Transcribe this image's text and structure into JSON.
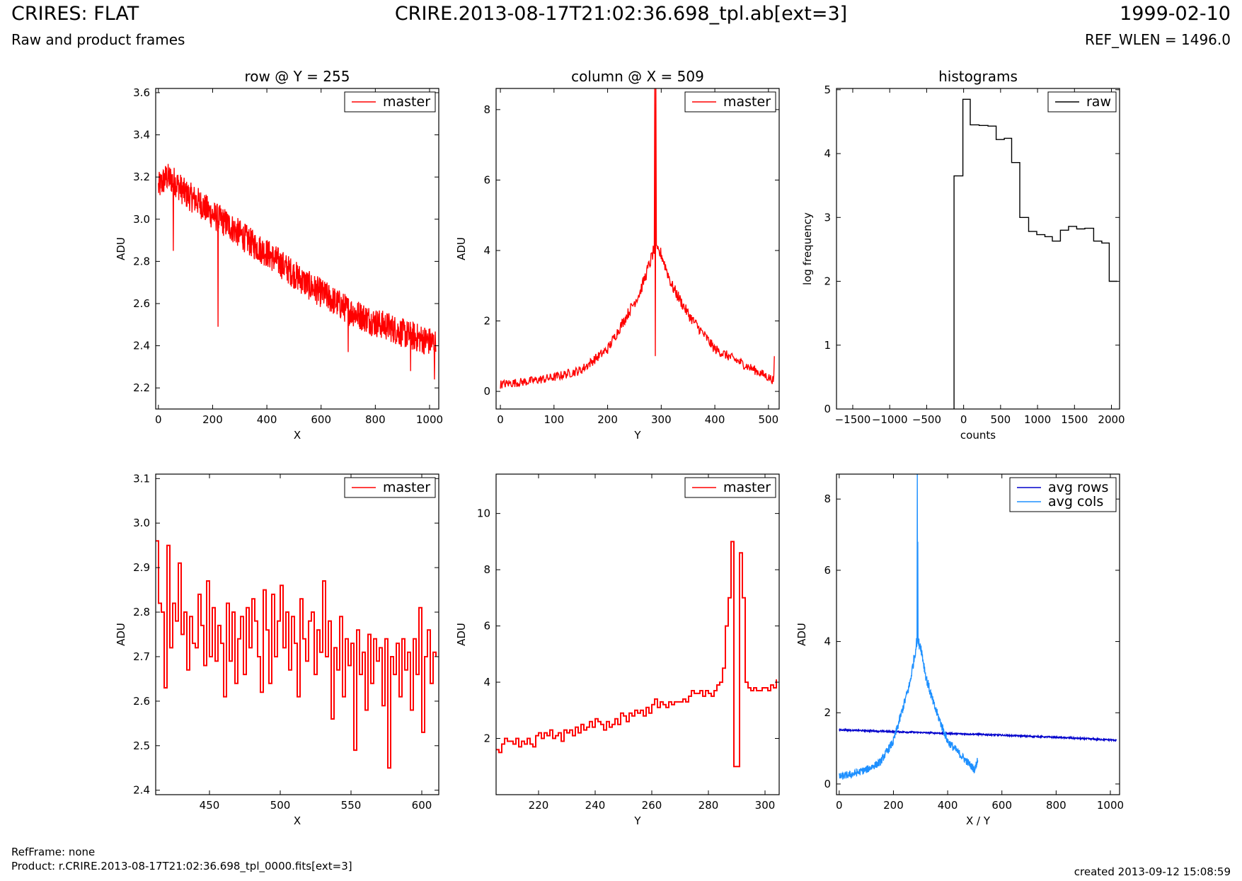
{
  "header": {
    "title_left": "CRIRES: FLAT",
    "subtitle_left": "Raw and product frames",
    "title_center": "CRIRE.2013-08-17T21:02:36.698_tpl.ab[ext=3]",
    "title_right": "1999-02-10",
    "subtitle_right": "REF_WLEN = 1496.0"
  },
  "footer": {
    "ref_frame": "RefFrame: none",
    "product": "Product: r.CRIRE.2013-08-17T21:02:36.698_tpl_0000.fits[ext=3]",
    "created": "created 2013-09-12 15:08:59"
  },
  "chart_data": [
    {
      "id": "row",
      "type": "line",
      "title": "row @ Y = 255",
      "xlabel": "X",
      "ylabel": "ADU",
      "xlim": [
        -10,
        1034
      ],
      "ylim": [
        2.1,
        3.62
      ],
      "xticks": [
        0,
        200,
        400,
        600,
        800,
        1000
      ],
      "yticks": [
        2.2,
        2.4,
        2.6,
        2.8,
        3.0,
        3.2,
        3.4,
        3.6
      ],
      "ytick_decimals": 1,
      "legend": "top-right",
      "series": [
        {
          "name": "master",
          "color": "#ff0000",
          "style": "line",
          "x": [
            0,
            30,
            60,
            100,
            150,
            200,
            250,
            300,
            350,
            400,
            450,
            500,
            550,
            600,
            650,
            700,
            750,
            800,
            850,
            900,
            950,
            1000,
            1023
          ],
          "y": [
            3.15,
            3.2,
            3.18,
            3.12,
            3.08,
            3.02,
            2.98,
            2.93,
            2.88,
            2.84,
            2.79,
            2.74,
            2.69,
            2.65,
            2.61,
            2.57,
            2.54,
            2.51,
            2.49,
            2.46,
            2.44,
            2.42,
            2.41
          ],
          "noise": 0.07,
          "spikes": [
            [
              220,
              2.49
            ],
            [
              55,
              2.85
            ],
            [
              700,
              2.37
            ],
            [
              930,
              2.28
            ],
            [
              1018,
              2.24
            ]
          ]
        }
      ]
    },
    {
      "id": "col",
      "type": "line",
      "title": "column @ X = 509",
      "xlabel": "Y",
      "ylabel": "ADU",
      "xlim": [
        -8,
        520
      ],
      "ylim": [
        -0.5,
        8.6
      ],
      "xticks": [
        0,
        100,
        200,
        300,
        400,
        500
      ],
      "yticks": [
        0,
        2,
        4,
        6,
        8
      ],
      "ytick_decimals": 0,
      "legend": "top-right",
      "series": [
        {
          "name": "master",
          "color": "#ff0000",
          "style": "line",
          "x": [
            0,
            50,
            100,
            150,
            200,
            230,
            260,
            280,
            286,
            300,
            320,
            350,
            400,
            450,
            500,
            511
          ],
          "y": [
            0.2,
            0.28,
            0.4,
            0.6,
            1.2,
            2.0,
            2.8,
            3.7,
            4.0,
            3.9,
            3.0,
            2.2,
            1.2,
            0.8,
            0.4,
            0.3
          ],
          "noise": 0.12,
          "spikes": [
            [
              288,
              8.6
            ],
            [
              289,
              1.0
            ],
            [
              290,
              8.6
            ],
            [
              511,
              1.0
            ]
          ]
        }
      ]
    },
    {
      "id": "hist",
      "type": "line",
      "title": "histograms",
      "xlabel": "counts",
      "ylabel": "log frequency",
      "xlim": [
        -1720,
        2110
      ],
      "ylim": [
        0,
        5.02
      ],
      "xticks": [
        -1500,
        -1000,
        -500,
        0,
        500,
        1000,
        1500,
        2000
      ],
      "xtick_labels": [
        "−1500",
        "−1000",
        "−500",
        "0",
        "500",
        "1000",
        "1500",
        "2000"
      ],
      "yticks": [
        0,
        1,
        2,
        3,
        4,
        5
      ],
      "ytick_decimals": 0,
      "legend": "top-right",
      "series": [
        {
          "name": "raw",
          "color": "#000000",
          "style": "step",
          "x": [
            -130,
            -10,
            90,
            210,
            330,
            440,
            550,
            650,
            760,
            880,
            990,
            1100,
            1200,
            1310,
            1420,
            1530,
            1640,
            1760,
            1870,
            1970,
            2080
          ],
          "y": [
            3.65,
            4.85,
            4.45,
            4.44,
            4.43,
            4.22,
            4.24,
            3.86,
            3.0,
            2.78,
            2.73,
            2.7,
            2.63,
            2.8,
            2.86,
            2.82,
            2.83,
            2.63,
            2.6,
            2.0,
            2.0
          ]
        }
      ]
    },
    {
      "id": "rowzoom",
      "type": "line",
      "title": "",
      "xlabel": "X",
      "ylabel": "ADU",
      "xlim": [
        412,
        612
      ],
      "ylim": [
        2.39,
        3.11
      ],
      "xticks": [
        450,
        500,
        550,
        600
      ],
      "yticks": [
        2.4,
        2.5,
        2.6,
        2.7,
        2.8,
        2.9,
        3.0,
        3.1
      ],
      "ytick_decimals": 1,
      "legend": "top-right",
      "series": [
        {
          "name": "master",
          "color": "#ff0000",
          "style": "step",
          "x": [
            412,
            414,
            416,
            418,
            420,
            422,
            424,
            426,
            428,
            430,
            432,
            434,
            436,
            438,
            440,
            442,
            444,
            446,
            448,
            450,
            452,
            454,
            456,
            458,
            460,
            462,
            464,
            466,
            468,
            470,
            472,
            474,
            476,
            478,
            480,
            482,
            484,
            486,
            488,
            490,
            492,
            494,
            496,
            498,
            500,
            502,
            504,
            506,
            508,
            510,
            512,
            514,
            516,
            518,
            520,
            522,
            524,
            526,
            528,
            530,
            532,
            534,
            536,
            538,
            540,
            542,
            544,
            546,
            548,
            550,
            552,
            554,
            556,
            558,
            560,
            562,
            564,
            566,
            568,
            570,
            572,
            574,
            576,
            578,
            580,
            582,
            584,
            586,
            588,
            590,
            592,
            594,
            596,
            598,
            600,
            602,
            604,
            606,
            608,
            610
          ],
          "y": [
            2.96,
            2.82,
            2.8,
            2.63,
            2.95,
            2.72,
            2.82,
            2.78,
            2.91,
            2.75,
            2.8,
            2.67,
            2.79,
            2.73,
            2.72,
            2.84,
            2.77,
            2.68,
            2.87,
            2.7,
            2.81,
            2.69,
            2.77,
            2.73,
            2.61,
            2.82,
            2.69,
            2.8,
            2.64,
            2.74,
            2.79,
            2.66,
            2.81,
            2.72,
            2.83,
            2.78,
            2.7,
            2.62,
            2.85,
            2.76,
            2.64,
            2.84,
            2.7,
            2.78,
            2.86,
            2.72,
            2.8,
            2.67,
            2.79,
            2.73,
            2.61,
            2.83,
            2.74,
            2.69,
            2.78,
            2.8,
            2.66,
            2.76,
            2.71,
            2.87,
            2.7,
            2.78,
            2.56,
            2.72,
            2.67,
            2.79,
            2.61,
            2.74,
            2.68,
            2.73,
            2.49,
            2.76,
            2.66,
            2.71,
            2.58,
            2.75,
            2.64,
            2.74,
            2.69,
            2.72,
            2.59,
            2.74,
            2.45,
            2.7,
            2.66,
            2.73,
            2.61,
            2.74,
            2.67,
            2.71,
            2.58,
            2.74,
            2.66,
            2.81,
            2.53,
            2.7,
            2.76,
            2.64,
            2.71,
            2.7
          ]
        }
      ]
    },
    {
      "id": "colzoom",
      "type": "line",
      "title": "",
      "xlabel": "Y",
      "ylabel": "ADU",
      "xlim": [
        205,
        305
      ],
      "ylim": [
        0,
        11.4
      ],
      "xticks": [
        220,
        240,
        260,
        280,
        300
      ],
      "yticks": [
        2,
        4,
        6,
        8,
        10
      ],
      "ytick_decimals": 0,
      "legend": "top-right",
      "series": [
        {
          "name": "master",
          "color": "#ff0000",
          "style": "step",
          "x": [
            205,
            206,
            207,
            208,
            209,
            210,
            211,
            212,
            213,
            214,
            215,
            216,
            217,
            218,
            219,
            220,
            221,
            222,
            223,
            224,
            225,
            226,
            227,
            228,
            229,
            230,
            231,
            232,
            233,
            234,
            235,
            236,
            237,
            238,
            239,
            240,
            241,
            242,
            243,
            244,
            245,
            246,
            247,
            248,
            249,
            250,
            251,
            252,
            253,
            254,
            255,
            256,
            257,
            258,
            259,
            260,
            261,
            262,
            263,
            264,
            265,
            266,
            267,
            268,
            269,
            270,
            271,
            272,
            273,
            274,
            275,
            276,
            277,
            278,
            279,
            280,
            281,
            282,
            283,
            284,
            285,
            286,
            287,
            288,
            289,
            290,
            291,
            292,
            293,
            294,
            295,
            296,
            297,
            298,
            299,
            300,
            301,
            302,
            303,
            304
          ],
          "y": [
            1.6,
            1.5,
            1.8,
            2.0,
            1.9,
            1.9,
            1.8,
            2.0,
            1.7,
            1.9,
            1.8,
            2.0,
            1.8,
            1.7,
            2.1,
            2.2,
            2.0,
            2.2,
            2.1,
            2.3,
            2.0,
            2.1,
            2.2,
            1.9,
            2.3,
            2.2,
            2.3,
            2.1,
            2.4,
            2.2,
            2.5,
            2.3,
            2.4,
            2.6,
            2.4,
            2.7,
            2.6,
            2.5,
            2.3,
            2.6,
            2.4,
            2.5,
            2.7,
            2.5,
            2.9,
            2.8,
            2.6,
            2.9,
            2.8,
            3.0,
            2.9,
            3.0,
            2.8,
            3.1,
            2.9,
            3.2,
            3.4,
            3.1,
            3.3,
            3.2,
            3.1,
            3.3,
            3.2,
            3.3,
            3.3,
            3.3,
            3.4,
            3.3,
            3.5,
            3.7,
            3.6,
            3.6,
            3.7,
            3.5,
            3.7,
            3.6,
            3.5,
            3.7,
            3.9,
            4.0,
            4.5,
            6.0,
            7.0,
            9.0,
            1.0,
            1.0,
            8.6,
            7.0,
            4.0,
            3.8,
            3.7,
            3.8,
            3.7,
            3.7,
            3.8,
            3.8,
            3.7,
            3.9,
            3.8,
            4.1
          ]
        }
      ]
    },
    {
      "id": "avg",
      "type": "line",
      "title": "",
      "xlabel": "X / Y",
      "ylabel": "ADU",
      "xlim": [
        -10,
        1034
      ],
      "ylim": [
        -0.3,
        8.7
      ],
      "xticks": [
        0,
        200,
        400,
        600,
        800,
        1000
      ],
      "yticks": [
        0,
        2,
        4,
        6,
        8
      ],
      "ytick_decimals": 0,
      "legend": "top-right",
      "series": [
        {
          "name": "avg rows",
          "color": "#0000cc",
          "style": "line",
          "x": [
            0,
            200,
            400,
            600,
            800,
            1023
          ],
          "y": [
            1.52,
            1.47,
            1.42,
            1.37,
            1.31,
            1.23
          ],
          "noise": 0.02,
          "spikes": []
        },
        {
          "name": "avg cols",
          "color": "#1e90ff",
          "style": "line",
          "x": [
            0,
            50,
            100,
            150,
            200,
            230,
            260,
            280,
            286,
            300,
            320,
            350,
            400,
            450,
            500,
            511
          ],
          "y": [
            0.2,
            0.28,
            0.4,
            0.6,
            1.2,
            2.0,
            2.8,
            3.7,
            4.0,
            3.9,
            3.0,
            2.2,
            1.2,
            0.8,
            0.4,
            0.7
          ],
          "noise": 0.1,
          "spikes": [
            [
              288,
              8.7
            ],
            [
              289,
              4.0
            ],
            [
              290,
              6.8
            ]
          ]
        }
      ]
    }
  ]
}
